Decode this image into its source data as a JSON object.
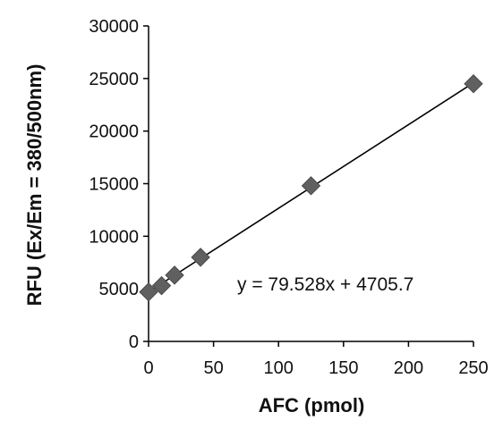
{
  "chart_data": {
    "type": "scatter",
    "title": "",
    "xlabel": "AFC (pmol)",
    "ylabel": "RFU (Ex/Em = 380/500nm)",
    "xlim": [
      0,
      250
    ],
    "ylim": [
      0,
      30000
    ],
    "xticks": [
      "0",
      "50",
      "100",
      "150",
      "200",
      "250"
    ],
    "yticks": [
      "0",
      "5000",
      "10000",
      "15000",
      "20000",
      "25000",
      "30000"
    ],
    "grid": false,
    "legend": "none",
    "series": [
      {
        "marker": "diamond",
        "color": "#606060",
        "points": [
          {
            "x": 0,
            "y": 4700
          },
          {
            "x": 10,
            "y": 5300
          },
          {
            "x": 20,
            "y": 6300
          },
          {
            "x": 40,
            "y": 8000
          },
          {
            "x": 125,
            "y": 14800
          },
          {
            "x": 250,
            "y": 24500
          }
        ]
      }
    ],
    "trendline": {
      "type": "linear",
      "slope": 79.528,
      "intercept": 4705.7,
      "color": "#000000",
      "equation_label": "y = 79.528x + 4705.7"
    }
  }
}
